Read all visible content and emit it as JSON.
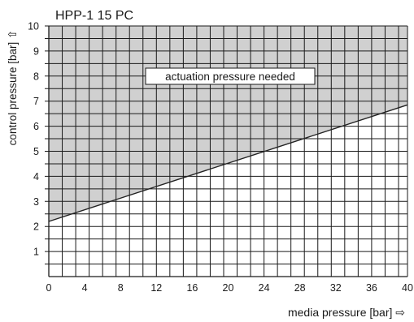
{
  "chart_data": {
    "type": "line",
    "title": "HPP-1 15 PC",
    "xlabel": "media pressure [bar] ⇨",
    "ylabel": "control pressure [bar] ⇧",
    "xlim": [
      0,
      40
    ],
    "ylim": [
      0,
      10
    ],
    "x_minor_step": 1.5,
    "y_minor_step": 0.5,
    "x_ticks": [
      0,
      4,
      8,
      12,
      16,
      20,
      24,
      28,
      32,
      36,
      40
    ],
    "x_tick_labels": [
      "0",
      "4",
      "8",
      "12",
      "16",
      "20",
      "24",
      "28",
      "32",
      "36",
      "40"
    ],
    "y_ticks": [
      1,
      2,
      3,
      4,
      5,
      6,
      7,
      8,
      9,
      10
    ],
    "y_tick_labels": [
      "1",
      "2",
      "3",
      "4",
      "5",
      "6",
      "7",
      "8",
      "9",
      "10"
    ],
    "series": [
      {
        "x": [
          0,
          40
        ],
        "y": [
          2.2,
          6.85
        ]
      }
    ],
    "shaded_region": {
      "label": "actuation pressure needed",
      "fill": "#d0d0d0",
      "bounds": "above line"
    },
    "grid": true,
    "colors": {
      "line": "#222222",
      "grid": "#1a1a1a",
      "shade": "#d0d0d0",
      "background": "#ffffff"
    }
  }
}
